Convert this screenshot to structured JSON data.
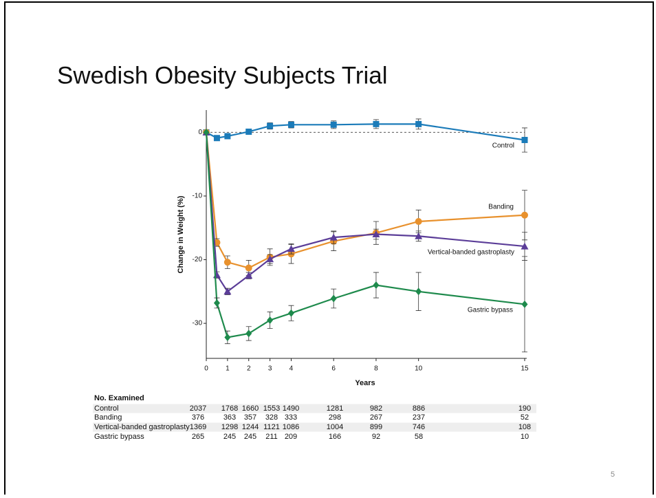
{
  "slide": {
    "title": "Swedish Obesity Subjects Trial",
    "page_number": "5"
  },
  "chart_data": {
    "type": "line",
    "ylabel": "Change in Weight (%)",
    "xlabel": "Years",
    "x": [
      0,
      0.5,
      1,
      2,
      3,
      4,
      6,
      8,
      10,
      15
    ],
    "xlim": [
      0,
      15
    ],
    "xticks": [
      0,
      1,
      2,
      3,
      4,
      6,
      8,
      10,
      15
    ],
    "ylim": [
      -35.5,
      3.5
    ],
    "yticks": [
      0,
      -10,
      -20,
      -30
    ],
    "series": [
      {
        "name": "Control",
        "color": "#1b7bb9",
        "marker": "square",
        "values": [
          0,
          -0.9,
          -0.6,
          0.1,
          1.0,
          1.2,
          1.2,
          1.3,
          1.3,
          -1.2
        ],
        "errors": [
          null,
          0.4,
          0.4,
          0.4,
          0.5,
          0.5,
          0.6,
          0.7,
          0.8,
          1.9
        ]
      },
      {
        "name": "Banding",
        "color": "#e8912d",
        "marker": "circle",
        "values": [
          0,
          -17.3,
          -20.4,
          -21.3,
          -19.6,
          -19.1,
          -17.1,
          -15.8,
          -14.0,
          -13.0
        ],
        "errors": [
          null,
          0.6,
          1.0,
          1.2,
          1.3,
          1.5,
          1.5,
          1.8,
          1.8,
          3.9
        ]
      },
      {
        "name": "Vertical-banded gastroplasty",
        "color": "#5b3d98",
        "marker": "triangle",
        "values": [
          0,
          -22.4,
          -25.0,
          -22.5,
          -19.9,
          -18.3,
          -16.5,
          -16.0,
          -16.3,
          -17.9
        ],
        "errors": [
          null,
          0.5,
          0.5,
          0.5,
          0.7,
          0.8,
          1.0,
          0.8,
          0.8,
          2.2
        ]
      },
      {
        "name": "Gastric bypass",
        "color": "#1e8a4c",
        "marker": "diamond",
        "values": [
          0,
          -26.8,
          -32.2,
          -31.6,
          -29.5,
          -28.4,
          -26.1,
          -24.0,
          -25.0,
          -27.0
        ],
        "errors": [
          null,
          0.8,
          1.0,
          1.1,
          1.3,
          1.2,
          1.5,
          2.0,
          3.0,
          7.5
        ]
      }
    ]
  },
  "table": {
    "title": "No. Examined",
    "rows": [
      [
        "Control",
        2037,
        1768,
        1660,
        1553,
        1490,
        1281,
        982,
        886,
        190
      ],
      [
        "Banding",
        376,
        363,
        357,
        328,
        333,
        298,
        267,
        237,
        52
      ],
      [
        "Vertical-banded gastroplasty",
        1369,
        1298,
        1244,
        1121,
        1086,
        1004,
        899,
        746,
        108
      ],
      [
        "Gastric bypass",
        265,
        245,
        245,
        211,
        209,
        166,
        92,
        58,
        10
      ]
    ]
  }
}
